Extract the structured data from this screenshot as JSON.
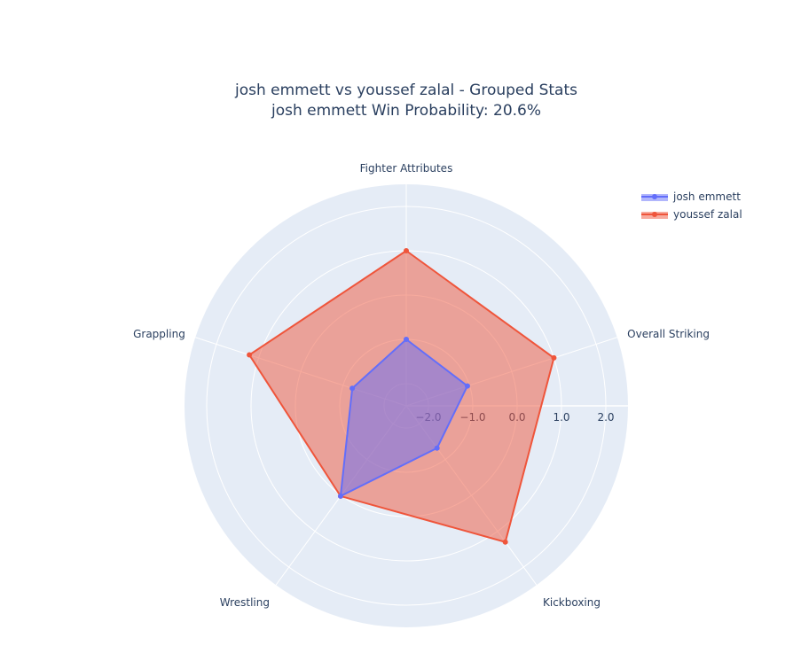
{
  "chart_data": {
    "type": "radar",
    "title": "josh emmett vs youssef zalal - Grouped Stats",
    "subtitle": "josh emmett Win Probability: 20.6%",
    "categories": [
      "Fighter Attributes",
      "Overall Striking",
      "Kickboxing",
      "Wrestling",
      "Grappling"
    ],
    "radial_range": [
      -2.5,
      2.5
    ],
    "radial_ticks": [
      -2,
      -1,
      0,
      1,
      2
    ],
    "radial_tick_labels": [
      "−2.0",
      "−1.0",
      "0.0",
      "1.0",
      "2.0"
    ],
    "legend_position": "top-right",
    "series": [
      {
        "name": "josh emmett",
        "values": [
          -1.0,
          -1.05,
          -1.32,
          0.02,
          -1.22
        ],
        "color": "#636efa"
      },
      {
        "name": "youssef zalal",
        "values": [
          1.0,
          1.0,
          1.3,
          0.02,
          1.22
        ],
        "color": "#ef553b"
      }
    ]
  }
}
